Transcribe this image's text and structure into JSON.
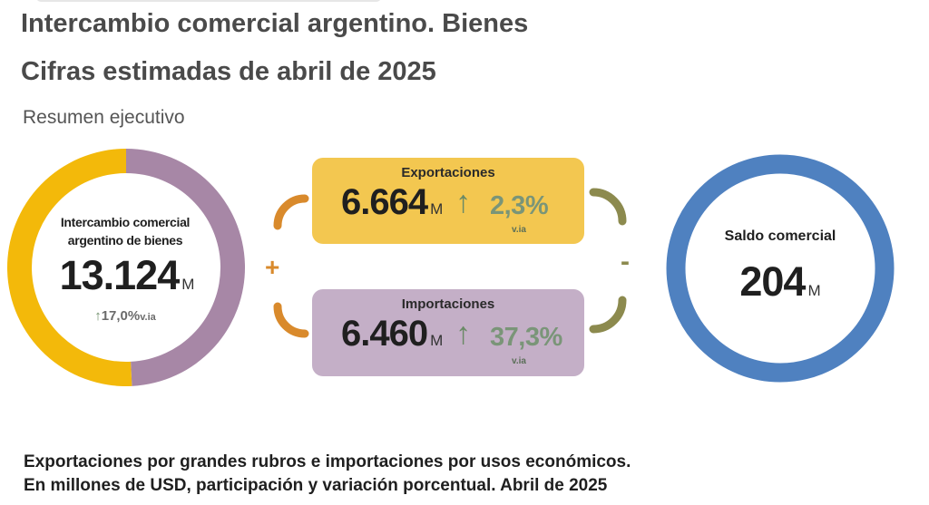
{
  "header": {
    "title_line1": "Intercambio comercial argentino. Bienes",
    "title_line2": "Cifras estimadas de abril de 2025",
    "subtitle": "Resumen ejecutivo"
  },
  "colors": {
    "exports": "#f3b90a",
    "imports": "#a787a6",
    "saldo": "#4f81c0",
    "bracket_left": "#d98a2c",
    "bracket_right": "#8c8a4e"
  },
  "chart_data": {
    "type": "pie",
    "categories": [
      "Exportaciones",
      "Importaciones"
    ],
    "values": [
      6664,
      6460
    ],
    "unit": "M",
    "total": {
      "label": "Intercambio comercial argentino de bienes",
      "value": "13.124",
      "unit": "M",
      "variation": "17,0%",
      "variation_suffix": "v.ia"
    }
  },
  "exports": {
    "label": "Exportaciones",
    "value": "6.664",
    "unit": "M",
    "arrow": "↑",
    "variation": "2,3%",
    "variation_suffix": "v.ia"
  },
  "imports": {
    "label": "Importaciones",
    "value": "6.460",
    "unit": "M",
    "arrow": "↑",
    "variation": "37,3%",
    "variation_suffix": "v.ia"
  },
  "saldo": {
    "label": "Saldo comercial",
    "value": "204",
    "unit": "M"
  },
  "signs": {
    "plus": "+",
    "minus": "-"
  },
  "footer": {
    "line1": "Exportaciones por grandes rubros e importaciones por usos económicos.",
    "line2": "En millones de USD, participación y variación porcentual. Abril de 2025"
  }
}
